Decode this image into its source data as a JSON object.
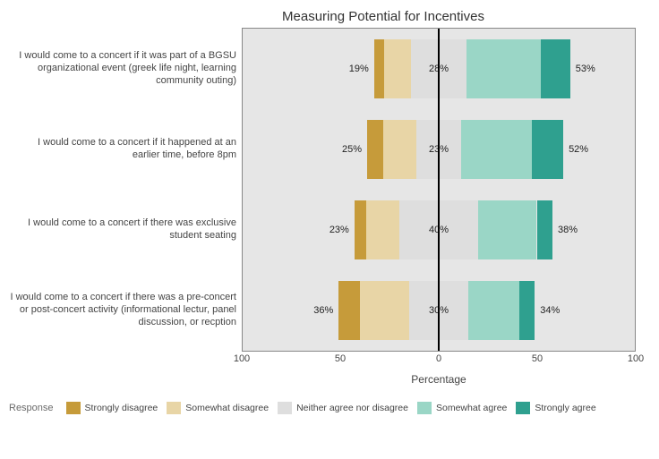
{
  "title": "Measuring Potential for Incentives",
  "x_label": "Percentage",
  "legend_title": "Response",
  "background_color": "#e6e6e6",
  "domain": [
    -100,
    100
  ],
  "x_ticks": [
    -100,
    -50,
    0,
    50,
    100
  ],
  "x_tick_labels": [
    "100",
    "50",
    "0",
    "50",
    "100"
  ],
  "categories": [
    {
      "key": "sd",
      "label": "Strongly disagree",
      "color": "#c69b3a"
    },
    {
      "key": "wd",
      "label": "Somewhat disagree",
      "color": "#e8d5a6"
    },
    {
      "key": "n",
      "label": "Neither agree nor disagree",
      "color": "#dedede"
    },
    {
      "key": "wa",
      "label": "Somewhat agree",
      "color": "#9ad6c6"
    },
    {
      "key": "sa",
      "label": "Strongly agree",
      "color": "#2fa08f"
    }
  ],
  "rows": [
    {
      "label": "I would come to a concert if it was part of a BGSU organizational event (greek life night, learning community outing)",
      "pct_left": "19%",
      "pct_mid": "28%",
      "pct_right": "53%",
      "values": {
        "sd": 5,
        "wd": 14,
        "n": 28,
        "wa": 38,
        "sa": 15
      }
    },
    {
      "label": "I would come to a concert if it happened at an earlier time, before 8pm",
      "pct_left": "25%",
      "pct_mid": "23%",
      "pct_right": "52%",
      "values": {
        "sd": 8,
        "wd": 17,
        "n": 23,
        "wa": 36,
        "sa": 16
      }
    },
    {
      "label": "I would come to a concert if there was exclusive student seating",
      "pct_left": "23%",
      "pct_mid": "40%",
      "pct_right": "38%",
      "values": {
        "sd": 6,
        "wd": 17,
        "n": 40,
        "wa": 30,
        "sa": 8
      }
    },
    {
      "label": "I would come to a concert if there was a pre-concert or post-concert activity (informational lectur, panel discussion, or recption",
      "pct_left": "36%",
      "pct_mid": "30%",
      "pct_right": "34%",
      "values": {
        "sd": 11,
        "wd": 25,
        "n": 30,
        "wa": 26,
        "sa": 8
      }
    }
  ]
}
